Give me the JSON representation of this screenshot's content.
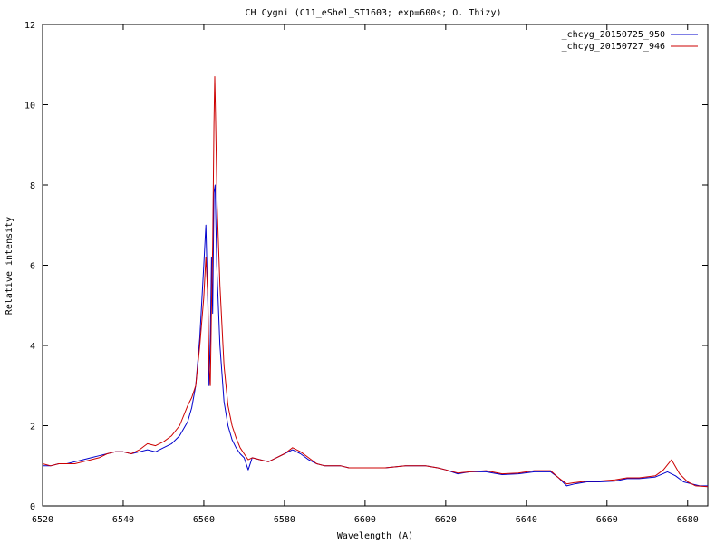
{
  "chart_data": {
    "type": "line",
    "title": "CH Cygni (C11_eShel_ST1603; exp=600s; O. Thizy)",
    "xlabel": "Wavelength (A)",
    "ylabel": "Relative intensity",
    "xlim": [
      6520,
      6685
    ],
    "ylim": [
      0,
      12
    ],
    "xticks": [
      6520,
      6540,
      6560,
      6580,
      6600,
      6620,
      6640,
      6660,
      6680
    ],
    "yticks": [
      0,
      2,
      4,
      6,
      8,
      10,
      12
    ],
    "grid": false,
    "legend_position": "top-right",
    "series": [
      {
        "name": "_chcyg_20150725_950",
        "color": "#0000cc",
        "points": [
          [
            6520,
            1.0
          ],
          [
            6522,
            1.0
          ],
          [
            6524,
            1.05
          ],
          [
            6526,
            1.05
          ],
          [
            6528,
            1.1
          ],
          [
            6530,
            1.15
          ],
          [
            6532,
            1.2
          ],
          [
            6534,
            1.25
          ],
          [
            6536,
            1.3
          ],
          [
            6538,
            1.35
          ],
          [
            6540,
            1.35
          ],
          [
            6542,
            1.3
          ],
          [
            6544,
            1.35
          ],
          [
            6546,
            1.4
          ],
          [
            6548,
            1.35
          ],
          [
            6550,
            1.45
          ],
          [
            6552,
            1.55
          ],
          [
            6554,
            1.75
          ],
          [
            6556,
            2.1
          ],
          [
            6557,
            2.45
          ],
          [
            6558,
            3.0
          ],
          [
            6559,
            4.2
          ],
          [
            6560,
            6.0
          ],
          [
            6560.5,
            7.0
          ],
          [
            6561,
            5.0
          ],
          [
            6561.3,
            3.0
          ],
          [
            6561.6,
            4.2
          ],
          [
            6561.9,
            6.2
          ],
          [
            6562.2,
            4.8
          ],
          [
            6562.5,
            7.8
          ],
          [
            6562.8,
            8.0
          ],
          [
            6563.2,
            6.0
          ],
          [
            6564,
            4.0
          ],
          [
            6565,
            2.6
          ],
          [
            6566,
            2.0
          ],
          [
            6567,
            1.65
          ],
          [
            6568,
            1.45
          ],
          [
            6569,
            1.3
          ],
          [
            6570,
            1.2
          ],
          [
            6571,
            0.9
          ],
          [
            6572,
            1.2
          ],
          [
            6574,
            1.15
          ],
          [
            6576,
            1.1
          ],
          [
            6578,
            1.2
          ],
          [
            6580,
            1.3
          ],
          [
            6582,
            1.4
          ],
          [
            6584,
            1.3
          ],
          [
            6586,
            1.15
          ],
          [
            6588,
            1.05
          ],
          [
            6590,
            1.0
          ],
          [
            6592,
            1.0
          ],
          [
            6594,
            1.0
          ],
          [
            6596,
            0.95
          ],
          [
            6598,
            0.95
          ],
          [
            6600,
            0.95
          ],
          [
            6605,
            0.95
          ],
          [
            6610,
            1.0
          ],
          [
            6615,
            1.0
          ],
          [
            6618,
            0.95
          ],
          [
            6620,
            0.9
          ],
          [
            6623,
            0.8
          ],
          [
            6626,
            0.85
          ],
          [
            6630,
            0.85
          ],
          [
            6634,
            0.78
          ],
          [
            6638,
            0.8
          ],
          [
            6642,
            0.85
          ],
          [
            6646,
            0.85
          ],
          [
            6648,
            0.7
          ],
          [
            6650,
            0.5
          ],
          [
            6652,
            0.55
          ],
          [
            6655,
            0.6
          ],
          [
            6658,
            0.6
          ],
          [
            6662,
            0.62
          ],
          [
            6665,
            0.68
          ],
          [
            6668,
            0.68
          ],
          [
            6672,
            0.72
          ],
          [
            6675,
            0.85
          ],
          [
            6677,
            0.75
          ],
          [
            6679,
            0.6
          ],
          [
            6681,
            0.55
          ],
          [
            6683,
            0.5
          ],
          [
            6685,
            0.5
          ]
        ]
      },
      {
        "name": "_chcyg_20150727_946",
        "color": "#cc0000",
        "points": [
          [
            6520,
            1.05
          ],
          [
            6522,
            1.0
          ],
          [
            6524,
            1.05
          ],
          [
            6526,
            1.05
          ],
          [
            6528,
            1.05
          ],
          [
            6530,
            1.1
          ],
          [
            6532,
            1.15
          ],
          [
            6534,
            1.2
          ],
          [
            6536,
            1.3
          ],
          [
            6538,
            1.35
          ],
          [
            6540,
            1.35
          ],
          [
            6542,
            1.3
          ],
          [
            6544,
            1.4
          ],
          [
            6546,
            1.55
          ],
          [
            6548,
            1.5
          ],
          [
            6550,
            1.6
          ],
          [
            6552,
            1.75
          ],
          [
            6554,
            2.0
          ],
          [
            6556,
            2.5
          ],
          [
            6557,
            2.7
          ],
          [
            6558,
            3.0
          ],
          [
            6559,
            4.0
          ],
          [
            6560,
            5.2
          ],
          [
            6560.5,
            6.2
          ],
          [
            6561,
            5.2
          ],
          [
            6561.3,
            3.5
          ],
          [
            6561.6,
            3.0
          ],
          [
            6561.9,
            5.0
          ],
          [
            6562.2,
            6.5
          ],
          [
            6562.5,
            9.5
          ],
          [
            6562.7,
            10.7
          ],
          [
            6562.9,
            9.8
          ],
          [
            6563.3,
            7.5
          ],
          [
            6564,
            5.5
          ],
          [
            6565,
            3.5
          ],
          [
            6566,
            2.5
          ],
          [
            6567,
            2.0
          ],
          [
            6568,
            1.7
          ],
          [
            6569,
            1.45
          ],
          [
            6570,
            1.3
          ],
          [
            6571,
            1.15
          ],
          [
            6572,
            1.2
          ],
          [
            6574,
            1.15
          ],
          [
            6576,
            1.1
          ],
          [
            6578,
            1.2
          ],
          [
            6580,
            1.3
          ],
          [
            6582,
            1.45
          ],
          [
            6584,
            1.35
          ],
          [
            6586,
            1.2
          ],
          [
            6588,
            1.05
          ],
          [
            6590,
            1.0
          ],
          [
            6592,
            1.0
          ],
          [
            6594,
            1.0
          ],
          [
            6596,
            0.95
          ],
          [
            6598,
            0.95
          ],
          [
            6600,
            0.95
          ],
          [
            6605,
            0.95
          ],
          [
            6610,
            1.0
          ],
          [
            6615,
            1.0
          ],
          [
            6618,
            0.95
          ],
          [
            6620,
            0.9
          ],
          [
            6623,
            0.82
          ],
          [
            6626,
            0.85
          ],
          [
            6630,
            0.88
          ],
          [
            6634,
            0.8
          ],
          [
            6638,
            0.82
          ],
          [
            6642,
            0.88
          ],
          [
            6646,
            0.88
          ],
          [
            6648,
            0.7
          ],
          [
            6650,
            0.55
          ],
          [
            6652,
            0.58
          ],
          [
            6655,
            0.62
          ],
          [
            6658,
            0.62
          ],
          [
            6662,
            0.65
          ],
          [
            6665,
            0.7
          ],
          [
            6668,
            0.7
          ],
          [
            6672,
            0.75
          ],
          [
            6674,
            0.9
          ],
          [
            6676,
            1.15
          ],
          [
            6678,
            0.8
          ],
          [
            6680,
            0.6
          ],
          [
            6682,
            0.5
          ],
          [
            6685,
            0.48
          ]
        ]
      }
    ]
  }
}
